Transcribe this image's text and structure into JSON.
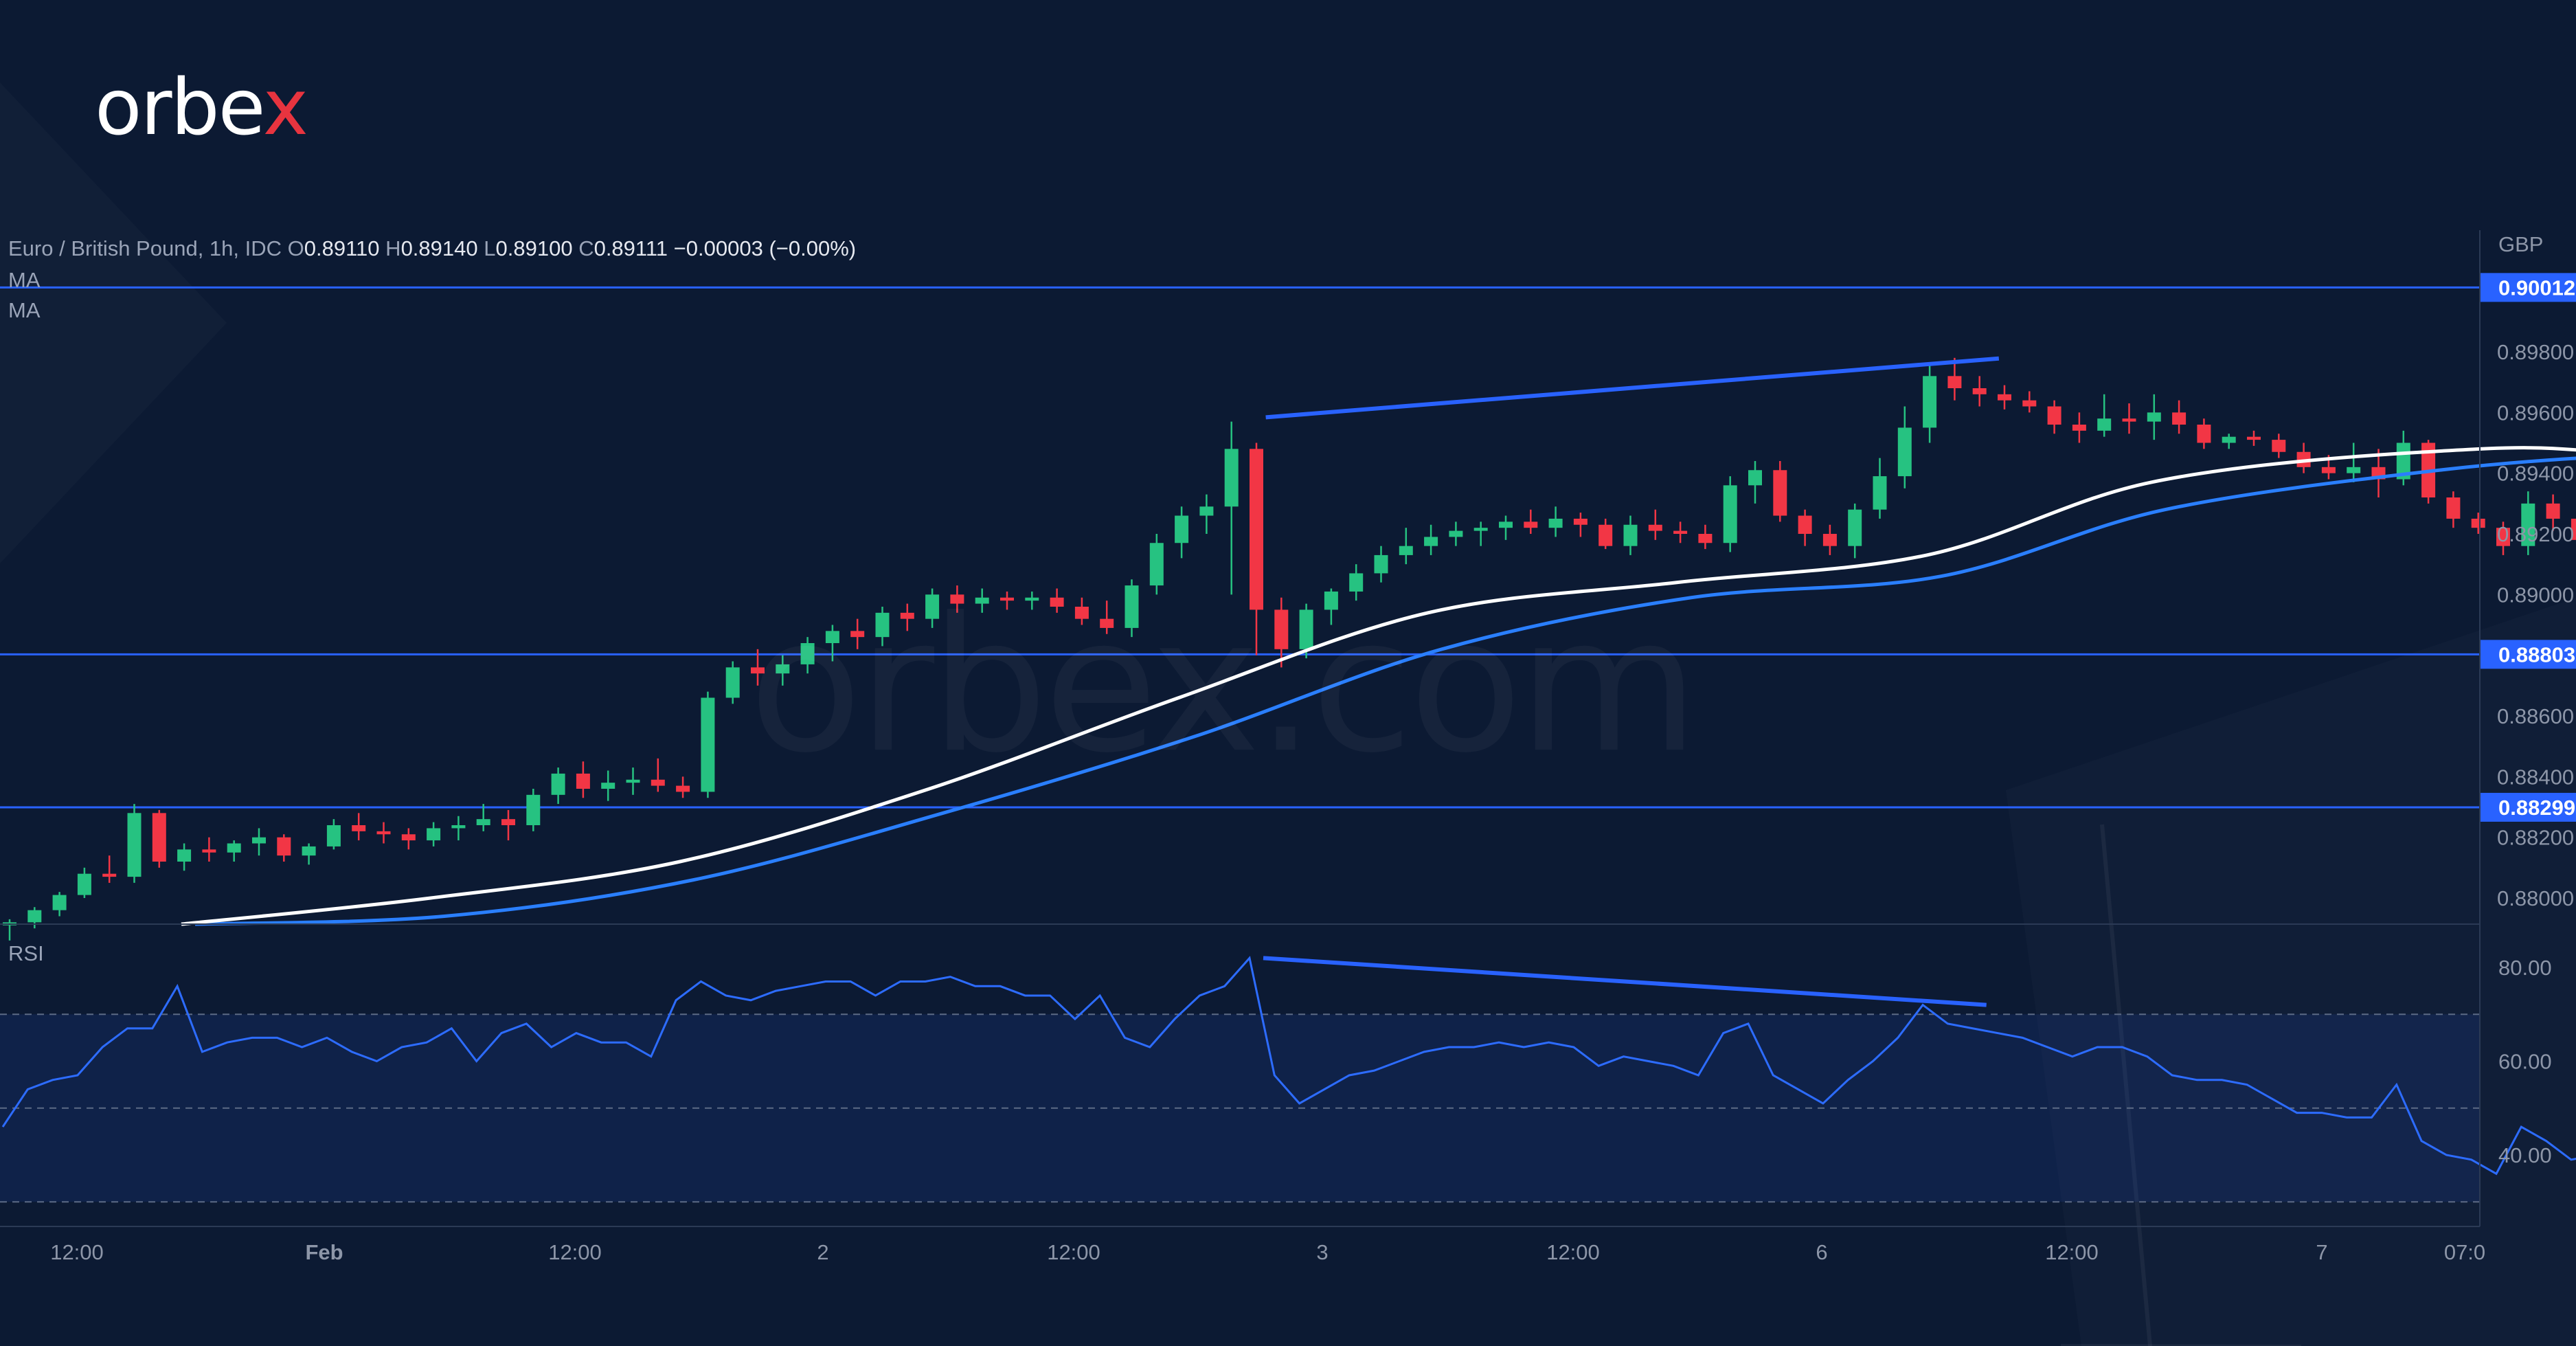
{
  "brand": {
    "logo_main": "orbe",
    "logo_x": "x",
    "watermark": "orbex.com"
  },
  "legend": {
    "symbol": "Euro / British Pound, 1h, IDC",
    "o_label": "O",
    "o_value": "0.89110",
    "h_label": "H",
    "h_value": "0.89140",
    "l_label": "L",
    "l_value": "0.89100",
    "c_label": "C",
    "c_value": "0.89111",
    "change": "−0.00003 (−0.00%)",
    "ma1": "MA",
    "ma2": "MA",
    "rsi": "RSI"
  },
  "currency": "GBP",
  "colors": {
    "background": "#0c1a33",
    "bull": "#26c281",
    "bear": "#f23645",
    "level_line": "#2962ff",
    "ma_fast": "#ffffff",
    "ma_slow": "#2a7fff",
    "rsi_line": "#2d6cff"
  },
  "chart_data": [
    {
      "type": "candlestick",
      "title": "Euro / British Pound, 1h, IDC",
      "y_unit": "GBP",
      "ylim": [
        0.879,
        0.902
      ],
      "y_ticks": [
        "0.88000",
        "0.88200",
        "0.88400",
        "0.88600",
        "0.89000",
        "0.89200",
        "0.89400",
        "0.89600",
        "0.89800"
      ],
      "x_ticks": [
        "12:00",
        "Feb",
        "12:00",
        "2",
        "12:00",
        "3",
        "12:00",
        "6",
        "12:00",
        "7",
        "07:0"
      ],
      "horizontal_levels": [
        {
          "price": 0.90012,
          "label": "0.90012"
        },
        {
          "price": 0.88803,
          "label": "0.88803"
        },
        {
          "price": 0.88299,
          "label": "0.88299"
        }
      ],
      "ohlc": [
        [
          0.8791,
          0.8793,
          0.8786,
          0.8792
        ],
        [
          0.8792,
          0.8797,
          0.879,
          0.8796
        ],
        [
          0.8796,
          0.8802,
          0.8794,
          0.8801
        ],
        [
          0.8801,
          0.881,
          0.88,
          0.8808
        ],
        [
          0.8808,
          0.8814,
          0.8805,
          0.8807
        ],
        [
          0.8807,
          0.8831,
          0.8805,
          0.8828
        ],
        [
          0.8828,
          0.8829,
          0.881,
          0.8812
        ],
        [
          0.8812,
          0.8818,
          0.8809,
          0.8816
        ],
        [
          0.8816,
          0.882,
          0.8812,
          0.8815
        ],
        [
          0.8815,
          0.8819,
          0.8812,
          0.8818
        ],
        [
          0.8818,
          0.8823,
          0.8814,
          0.882
        ],
        [
          0.882,
          0.8821,
          0.8812,
          0.8814
        ],
        [
          0.8814,
          0.8818,
          0.8811,
          0.8817
        ],
        [
          0.8817,
          0.8826,
          0.8816,
          0.8824
        ],
        [
          0.8824,
          0.8828,
          0.8819,
          0.8822
        ],
        [
          0.8822,
          0.8825,
          0.8818,
          0.8821
        ],
        [
          0.8821,
          0.8823,
          0.8816,
          0.8819
        ],
        [
          0.8819,
          0.8825,
          0.8817,
          0.8823
        ],
        [
          0.8823,
          0.8827,
          0.8819,
          0.8824
        ],
        [
          0.8824,
          0.8831,
          0.8822,
          0.8826
        ],
        [
          0.8826,
          0.8829,
          0.8819,
          0.8824
        ],
        [
          0.8824,
          0.8836,
          0.8822,
          0.8834
        ],
        [
          0.8834,
          0.8843,
          0.8831,
          0.8841
        ],
        [
          0.8841,
          0.8845,
          0.8833,
          0.8836
        ],
        [
          0.8836,
          0.8842,
          0.8832,
          0.8838
        ],
        [
          0.8838,
          0.8843,
          0.8834,
          0.8839
        ],
        [
          0.8839,
          0.8846,
          0.8835,
          0.8837
        ],
        [
          0.8837,
          0.884,
          0.8833,
          0.8835
        ],
        [
          0.8835,
          0.8868,
          0.8833,
          0.8866
        ],
        [
          0.8866,
          0.8878,
          0.8864,
          0.8876
        ],
        [
          0.8876,
          0.8882,
          0.887,
          0.8874
        ],
        [
          0.8874,
          0.888,
          0.887,
          0.8877
        ],
        [
          0.8877,
          0.8886,
          0.8874,
          0.8884
        ],
        [
          0.8884,
          0.889,
          0.8878,
          0.8888
        ],
        [
          0.8888,
          0.8892,
          0.8882,
          0.8886
        ],
        [
          0.8886,
          0.8896,
          0.8883,
          0.8894
        ],
        [
          0.8894,
          0.8897,
          0.8888,
          0.8892
        ],
        [
          0.8892,
          0.8902,
          0.8889,
          0.89
        ],
        [
          0.89,
          0.8903,
          0.8894,
          0.8897
        ],
        [
          0.8897,
          0.8902,
          0.8894,
          0.8899
        ],
        [
          0.8899,
          0.8901,
          0.8895,
          0.8898
        ],
        [
          0.8898,
          0.8901,
          0.8895,
          0.8899
        ],
        [
          0.8899,
          0.8902,
          0.8894,
          0.8896
        ],
        [
          0.8896,
          0.8899,
          0.889,
          0.8892
        ],
        [
          0.8892,
          0.8898,
          0.8887,
          0.8889
        ],
        [
          0.8889,
          0.8905,
          0.8886,
          0.8903
        ],
        [
          0.8903,
          0.892,
          0.89,
          0.8917
        ],
        [
          0.8917,
          0.8929,
          0.8912,
          0.8926
        ],
        [
          0.8926,
          0.8933,
          0.892,
          0.8929
        ],
        [
          0.8929,
          0.8957,
          0.89,
          0.8948
        ],
        [
          0.8948,
          0.895,
          0.888,
          0.8895
        ],
        [
          0.8895,
          0.8899,
          0.8876,
          0.8882
        ],
        [
          0.8882,
          0.8897,
          0.8879,
          0.8895
        ],
        [
          0.8895,
          0.8902,
          0.889,
          0.8901
        ],
        [
          0.8901,
          0.891,
          0.8898,
          0.8907
        ],
        [
          0.8907,
          0.8916,
          0.8904,
          0.8913
        ],
        [
          0.8913,
          0.8922,
          0.891,
          0.8916
        ],
        [
          0.8916,
          0.8923,
          0.8913,
          0.8919
        ],
        [
          0.8919,
          0.8924,
          0.8916,
          0.8921
        ],
        [
          0.8921,
          0.8924,
          0.8916,
          0.8922
        ],
        [
          0.8922,
          0.8926,
          0.8918,
          0.8924
        ],
        [
          0.8924,
          0.8928,
          0.892,
          0.8922
        ],
        [
          0.8922,
          0.8929,
          0.8919,
          0.8925
        ],
        [
          0.8925,
          0.8927,
          0.8919,
          0.8923
        ],
        [
          0.8923,
          0.8925,
          0.8915,
          0.8916
        ],
        [
          0.8916,
          0.8926,
          0.8913,
          0.8923
        ],
        [
          0.8923,
          0.8928,
          0.8918,
          0.8921
        ],
        [
          0.8921,
          0.8924,
          0.8917,
          0.892
        ],
        [
          0.892,
          0.8923,
          0.8915,
          0.8917
        ],
        [
          0.8917,
          0.8939,
          0.8914,
          0.8936
        ],
        [
          0.8936,
          0.8944,
          0.893,
          0.8941
        ],
        [
          0.8941,
          0.8944,
          0.8924,
          0.8926
        ],
        [
          0.8926,
          0.8928,
          0.8916,
          0.892
        ],
        [
          0.892,
          0.8923,
          0.8913,
          0.8916
        ],
        [
          0.8916,
          0.893,
          0.8912,
          0.8928
        ],
        [
          0.8928,
          0.8945,
          0.8925,
          0.8939
        ],
        [
          0.8939,
          0.8962,
          0.8935,
          0.8955
        ],
        [
          0.8955,
          0.8976,
          0.895,
          0.8972
        ],
        [
          0.8972,
          0.8978,
          0.8964,
          0.8968
        ],
        [
          0.8968,
          0.8972,
          0.8962,
          0.8966
        ],
        [
          0.8966,
          0.8969,
          0.8961,
          0.8964
        ],
        [
          0.8964,
          0.8967,
          0.896,
          0.8962
        ],
        [
          0.8962,
          0.8964,
          0.8953,
          0.8956
        ],
        [
          0.8956,
          0.896,
          0.895,
          0.8954
        ],
        [
          0.8954,
          0.8966,
          0.8952,
          0.8958
        ],
        [
          0.8958,
          0.8963,
          0.8953,
          0.8957
        ],
        [
          0.8957,
          0.8966,
          0.8951,
          0.896
        ],
        [
          0.896,
          0.8964,
          0.8953,
          0.8956
        ],
        [
          0.8956,
          0.8958,
          0.8948,
          0.895
        ],
        [
          0.895,
          0.8953,
          0.8948,
          0.8952
        ],
        [
          0.8952,
          0.8954,
          0.8949,
          0.8951
        ],
        [
          0.8951,
          0.8953,
          0.8945,
          0.8947
        ],
        [
          0.8947,
          0.895,
          0.894,
          0.8942
        ],
        [
          0.8942,
          0.8946,
          0.8938,
          0.894
        ],
        [
          0.894,
          0.895,
          0.8937,
          0.8942
        ],
        [
          0.8942,
          0.8948,
          0.8932,
          0.8938
        ],
        [
          0.8938,
          0.8954,
          0.8936,
          0.895
        ],
        [
          0.895,
          0.8951,
          0.893,
          0.8932
        ],
        [
          0.8932,
          0.8934,
          0.8922,
          0.8925
        ],
        [
          0.8925,
          0.8927,
          0.892,
          0.8922
        ],
        [
          0.8922,
          0.8924,
          0.8913,
          0.8916
        ],
        [
          0.8916,
          0.8934,
          0.8913,
          0.893
        ],
        [
          0.893,
          0.8933,
          0.8921,
          0.8925
        ],
        [
          0.8925,
          0.8927,
          0.8915,
          0.8918
        ],
        [
          0.8918,
          0.892,
          0.8914,
          0.8917
        ],
        [
          0.8917,
          0.8921,
          0.8914,
          0.8919
        ],
        [
          0.8919,
          0.8926,
          0.8915,
          0.8923
        ],
        [
          0.8923,
          0.8925,
          0.8918,
          0.8922
        ],
        [
          0.8922,
          0.8926,
          0.8917,
          0.8924
        ],
        [
          0.8924,
          0.8926,
          0.8918,
          0.892
        ],
        [
          0.892,
          0.8922,
          0.8916,
          0.8918
        ],
        [
          0.8918,
          0.8919,
          0.891,
          0.8911
        ],
        [
          0.8911,
          0.8914,
          0.891,
          0.8911
        ]
      ],
      "ma_fast": {
        "name": "MA",
        "values": [
          [
            0,
            0.8788
          ],
          [
            10,
            0.88
          ],
          [
            20,
            0.8812
          ],
          [
            30,
            0.8836
          ],
          [
            40,
            0.8866
          ],
          [
            50,
            0.8894
          ],
          [
            60,
            0.8904
          ],
          [
            70,
            0.8913
          ],
          [
            79,
            0.8937
          ],
          [
            90,
            0.8947
          ],
          [
            98,
            0.8946
          ],
          [
            110,
            0.8926
          ]
        ]
      },
      "ma_slow": {
        "name": "MA",
        "values": [
          [
            0,
            0.8785
          ],
          [
            10,
            0.8794
          ],
          [
            20,
            0.8806
          ],
          [
            30,
            0.8828
          ],
          [
            40,
            0.8853
          ],
          [
            50,
            0.8882
          ],
          [
            60,
            0.8899
          ],
          [
            70,
            0.8906
          ],
          [
            79,
            0.8928
          ],
          [
            90,
            0.8941
          ],
          [
            98,
            0.8946
          ],
          [
            103,
            0.8946
          ],
          [
            110,
            0.8935
          ]
        ]
      },
      "annotations": [
        {
          "kind": "trendline",
          "from": {
            "index": 50.1,
            "price": 0.89584
          },
          "to": {
            "index": 79.5,
            "price": 0.89778
          }
        }
      ]
    },
    {
      "type": "line",
      "title": "RSI",
      "ylim": [
        24,
        90
      ],
      "y_ticks": [
        "40.00",
        "60.00",
        "80.00"
      ],
      "band": {
        "upper": 70,
        "middle": 50,
        "lower": 30
      },
      "values": [
        46,
        54,
        56,
        57,
        63,
        67,
        67,
        76,
        62,
        64,
        65,
        65,
        63,
        65,
        62,
        60,
        63,
        64,
        67,
        60,
        66,
        68,
        63,
        66,
        64,
        64,
        61,
        73,
        77,
        74,
        73,
        75,
        76,
        77,
        77,
        74,
        77,
        77,
        78,
        76,
        76,
        74,
        74,
        69,
        74,
        65,
        63,
        69,
        74,
        76,
        82,
        57,
        51,
        54,
        57,
        58,
        60,
        62,
        63,
        63,
        64,
        63,
        64,
        63,
        59,
        61,
        60,
        59,
        57,
        66,
        68,
        57,
        54,
        51,
        56,
        60,
        65,
        72,
        68,
        67,
        66,
        65,
        63,
        61,
        63,
        63,
        61,
        57,
        56,
        56,
        55,
        52,
        49,
        49,
        48,
        48,
        55,
        43,
        40,
        39,
        36,
        46,
        43,
        39,
        40,
        40,
        42,
        42,
        41,
        41,
        36,
        36
      ],
      "annotations": [
        {
          "kind": "trendline",
          "from": {
            "index": 50.0,
            "value": 82
          },
          "to": {
            "index": 79.0,
            "value": 72
          }
        }
      ]
    }
  ]
}
